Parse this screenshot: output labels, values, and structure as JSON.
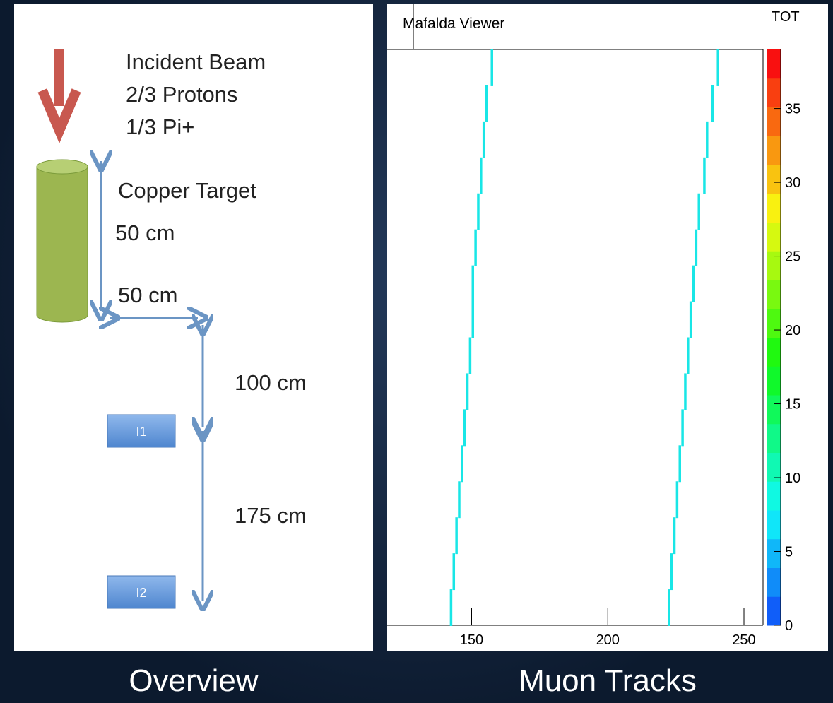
{
  "overview": {
    "caption": "Overview",
    "beam_lines": [
      "Incident Beam",
      "2/3 Protons",
      "1/3 Pi+"
    ],
    "target_label": "Copper Target",
    "height_label": "50 cm",
    "width_label": "50 cm",
    "gap1_label": "100 cm",
    "gap2_label": "175 cm",
    "detector1": "I1",
    "detector2": "I2"
  },
  "chart_data": {
    "type": "track",
    "caption": "Muon Tracks",
    "title": "Mafalda Viewer",
    "colorbar_title": "TOT",
    "xlim": [
      119,
      257
    ],
    "xticks": [
      150,
      200,
      250
    ],
    "zlim": [
      0,
      39
    ],
    "zticks": [
      0,
      5,
      10,
      15,
      20,
      25,
      30,
      35
    ],
    "series": [
      {
        "color": "#19e6e6",
        "values": [
          142,
          143,
          144,
          145,
          146,
          147,
          148,
          149,
          150,
          150,
          151,
          152,
          153,
          154,
          155,
          157
        ]
      },
      {
        "color": "#19e6e6",
        "values": [
          222,
          223,
          224,
          225,
          226,
          227,
          228,
          229,
          230,
          231,
          232,
          233,
          235,
          236,
          238,
          240
        ]
      }
    ]
  }
}
